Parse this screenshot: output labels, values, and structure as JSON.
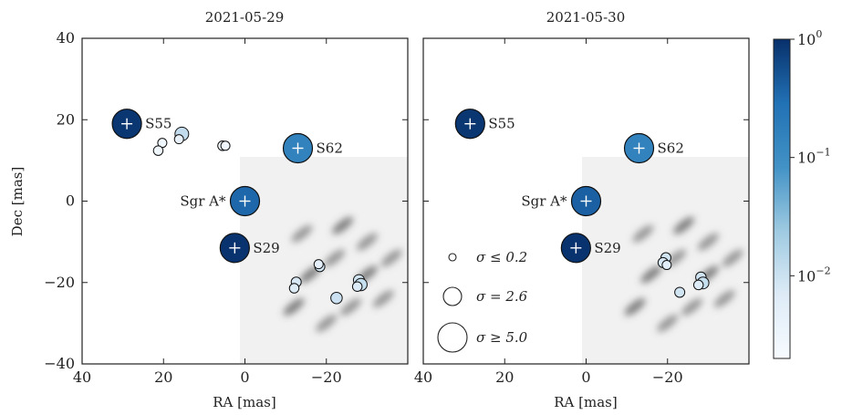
{
  "colors": {
    "bright": "#08306b",
    "faint": "#e8f1fa",
    "residual_dark": "#2a2a2a"
  },
  "chart_data": [
    {
      "type": "scatter",
      "title": "2021-05-29",
      "xlabel": "RA [mas]",
      "ylabel": "Dec [mas]",
      "xlim": [
        40,
        -40
      ],
      "ylim": [
        -40,
        40
      ],
      "xticks": [
        "40",
        "20",
        "0",
        "−20"
      ],
      "yticks": [
        "40",
        "20",
        "0",
        "−20",
        "−40"
      ],
      "sources": [
        {
          "name": "S55",
          "x": 29,
          "y": 19,
          "flux": 0.9,
          "sigma": 5.0
        },
        {
          "name": "S62",
          "x": -13,
          "y": 13,
          "flux": 0.15,
          "sigma": 5.0
        },
        {
          "name": "Sgr A*",
          "x": 0,
          "y": 0,
          "flux": 0.35,
          "sigma": 5.0
        },
        {
          "name": "S29",
          "x": 2.5,
          "y": -11.5,
          "flux": 0.95,
          "sigma": 5.0
        }
      ],
      "residuals": [
        {
          "x": 15.5,
          "y": 16.5,
          "flux": 0.012,
          "sigma": 1.6
        },
        {
          "x": 16.2,
          "y": 15.2,
          "flux": 0.004,
          "sigma": 0.6
        },
        {
          "x": 20.3,
          "y": 14.3,
          "flux": 0.003,
          "sigma": 0.6
        },
        {
          "x": 21.3,
          "y": 12.4,
          "flux": 0.003,
          "sigma": 0.7
        },
        {
          "x": 5.5,
          "y": 13.6,
          "flux": 0.003,
          "sigma": 0.7
        },
        {
          "x": 4.8,
          "y": 13.6,
          "flux": 0.003,
          "sigma": 0.6
        },
        {
          "x": -18.4,
          "y": -16.1,
          "flux": 0.009,
          "sigma": 0.8
        },
        {
          "x": -18.1,
          "y": -15.5,
          "flux": 0.005,
          "sigma": 0.6
        },
        {
          "x": -12.6,
          "y": -19.9,
          "flux": 0.008,
          "sigma": 0.8
        },
        {
          "x": -12.1,
          "y": -21.4,
          "flux": 0.007,
          "sigma": 0.7
        },
        {
          "x": -22.5,
          "y": -23.8,
          "flux": 0.01,
          "sigma": 1.1
        },
        {
          "x": -28,
          "y": -19.4,
          "flux": 0.009,
          "sigma": 1.0
        },
        {
          "x": -28.5,
          "y": -20.5,
          "flux": 0.011,
          "sigma": 1.3
        },
        {
          "x": -27.6,
          "y": -21,
          "flux": 0.007,
          "sigma": 0.7
        }
      ]
    },
    {
      "type": "scatter",
      "title": "2021-05-30",
      "xlabel": "RA [mas]",
      "ylabel": "",
      "xlim": [
        40,
        -40
      ],
      "ylim": [
        -40,
        40
      ],
      "xticks": [
        "40",
        "20",
        "0",
        "−20"
      ],
      "sources": [
        {
          "name": "S55",
          "x": 28.5,
          "y": 19,
          "flux": 0.9,
          "sigma": 5.0
        },
        {
          "name": "S62",
          "x": -13,
          "y": 13,
          "flux": 0.15,
          "sigma": 5.0
        },
        {
          "name": "Sgr A*",
          "x": 0,
          "y": 0,
          "flux": 0.4,
          "sigma": 5.0
        },
        {
          "name": "S29",
          "x": 2.5,
          "y": -11.5,
          "flux": 0.95,
          "sigma": 5.0
        }
      ],
      "residuals": [
        {
          "x": -19.6,
          "y": -13.9,
          "flux": 0.009,
          "sigma": 0.8
        },
        {
          "x": -18.9,
          "y": -15.1,
          "flux": 0.008,
          "sigma": 0.8
        },
        {
          "x": -19.8,
          "y": -15.7,
          "flux": 0.006,
          "sigma": 0.6
        },
        {
          "x": -28.2,
          "y": -18.7,
          "flux": 0.009,
          "sigma": 0.9
        },
        {
          "x": -28.7,
          "y": -20.1,
          "flux": 0.011,
          "sigma": 1.2
        },
        {
          "x": -27.6,
          "y": -20.6,
          "flux": 0.007,
          "sigma": 0.7
        },
        {
          "x": -23,
          "y": -22.4,
          "flux": 0.009,
          "sigma": 0.8
        }
      ],
      "legend": [
        {
          "label": "σ ≤ 0.2",
          "sigma": 0.2
        },
        {
          "label": "σ = 2.6",
          "sigma": 2.6
        },
        {
          "label": "σ ≥ 5.0",
          "sigma": 5.0
        }
      ]
    }
  ],
  "colorbar": {
    "scale": "log",
    "range": [
      0.002,
      1
    ],
    "ticks": [
      {
        "value": 1,
        "label": "10",
        "exp": "0"
      },
      {
        "value": 0.1,
        "label": "10",
        "exp": "−1"
      },
      {
        "value": 0.01,
        "label": "10",
        "exp": "−2"
      }
    ]
  }
}
